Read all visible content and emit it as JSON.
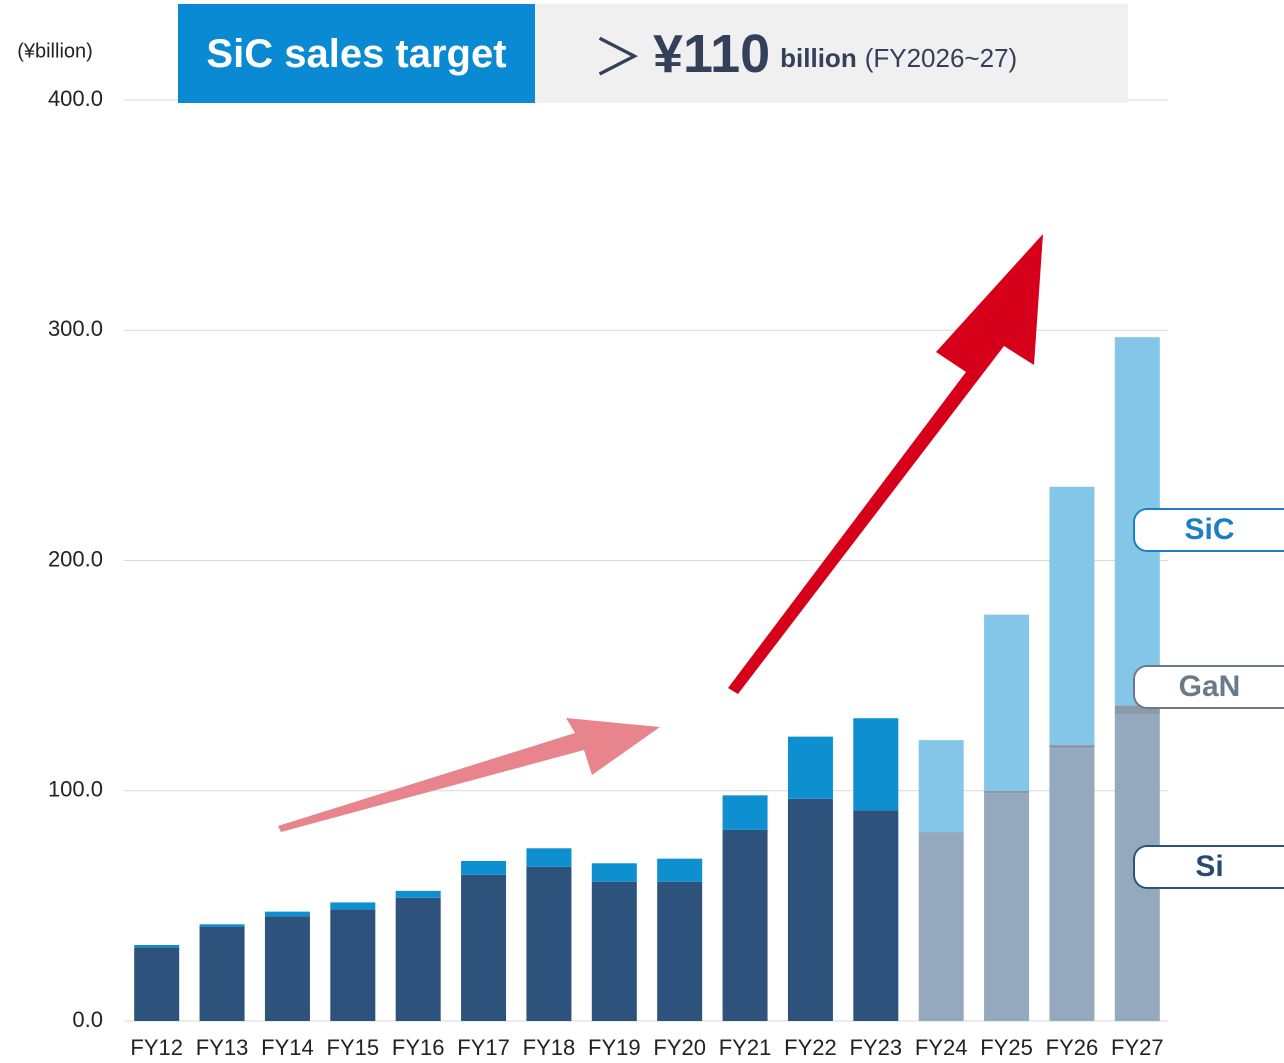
{
  "chart_data": {
    "type": "stacked_bar",
    "title": "SiC sales target",
    "headline": {
      "symbol": "＞",
      "amount": "¥110",
      "unit": "billion",
      "period": "(FY2026~27)"
    },
    "y_label": "(¥billion)",
    "categories": [
      "FY12",
      "FY13",
      "FY14",
      "FY15",
      "FY16",
      "FY17",
      "FY18",
      "FY19",
      "FY20",
      "FY21",
      "FY22",
      "FY23",
      "FY24",
      "FY25",
      "FY26",
      "FY27"
    ],
    "series": [
      {
        "name": "Si",
        "color": "#2d527c",
        "text_color": "#2b4a72",
        "colors": [
          "#2d527c",
          "#2d527c",
          "#2d527c",
          "#2d527c",
          "#2d527c",
          "#2d527c",
          "#2d527c",
          "#2d527c",
          "#2d527c",
          "#2d527c",
          "#2d527c",
          "#2d527c",
          "#94a9be",
          "#94a9be",
          "#94a9be",
          "#94a9be"
        ],
        "values": [
          32,
          41,
          45.5,
          48.5,
          53.5,
          63.5,
          67,
          60.5,
          60.5,
          83,
          96.5,
          91.5,
          81.5,
          99,
          118.5,
          133
        ]
      },
      {
        "name": "GaN",
        "color": "#6b7a8a",
        "text_color": "#6b7a8a",
        "colors": [
          "#8a9aa8",
          "#8a9aa8",
          "#8a9aa8",
          "#8a9aa8",
          "#8a9aa8",
          "#8a9aa8",
          "#8a9aa8",
          "#8a9aa8",
          "#8a9aa8",
          "#8a9aa8",
          "#8a9aa8",
          "#8a9aa8",
          "#8a9aa8",
          "#8a9aa8",
          "#8a9aa8",
          "#8a9aa8"
        ],
        "values": [
          0,
          0,
          0,
          0,
          0,
          0,
          0,
          0,
          0,
          0,
          0,
          0,
          0.5,
          1,
          1.5,
          4
        ]
      },
      {
        "name": "SiC",
        "color": "#1b7fc4",
        "text_color": "#1b7fc4",
        "colors": [
          "#0d8fd0",
          "#0d8fd0",
          "#0d8fd0",
          "#0d8fd0",
          "#0d8fd0",
          "#0d8fd0",
          "#0d8fd0",
          "#0d8fd0",
          "#0d8fd0",
          "#0d8fd0",
          "#0d8fd0",
          "#0d8fd0",
          "#84c6e8",
          "#84c6e8",
          "#84c6e8",
          "#84c6e8"
        ],
        "values": [
          1,
          1,
          2,
          3,
          3,
          6,
          8,
          8,
          10,
          15,
          27,
          40,
          40,
          76.5,
          112,
          160
        ]
      }
    ],
    "ylim": [
      0,
      400
    ],
    "yticks": [
      {
        "value": 0,
        "label": "0.0"
      },
      {
        "value": 100,
        "label": "100.0"
      },
      {
        "value": 200,
        "label": "200.0"
      },
      {
        "value": 300,
        "label": "300.0"
      },
      {
        "value": 400,
        "label": "400.0"
      }
    ],
    "grid": true
  }
}
